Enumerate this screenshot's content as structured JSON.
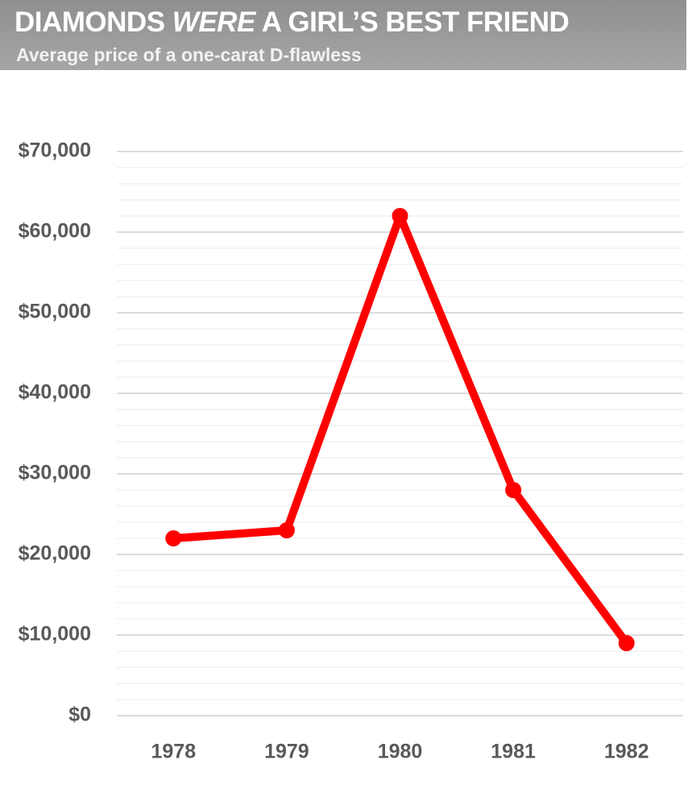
{
  "chart_data": {
    "type": "line",
    "title": [
      "DIAMONDS",
      "WERE",
      "A GIRL’S BEST FRIEND"
    ],
    "subtitle": "Average price of a one-carat D-flawless",
    "categories": [
      "1978",
      "1979",
      "1980",
      "1981",
      "1982"
    ],
    "series": [
      {
        "name": "Average price",
        "color": "#ff0000",
        "values": [
          22000,
          23000,
          62000,
          28000,
          9000
        ]
      }
    ],
    "ylim": [
      0,
      70000
    ],
    "yticks": [
      {
        "value": 0,
        "label": "$0"
      },
      {
        "value": 10000,
        "label": "$10,000"
      },
      {
        "value": 20000,
        "label": "$20,000"
      },
      {
        "value": 30000,
        "label": "$30,000"
      },
      {
        "value": 40000,
        "label": "$40,000"
      },
      {
        "value": 50000,
        "label": "$50,000"
      },
      {
        "value": 60000,
        "label": "$60,000"
      },
      {
        "value": 70000,
        "label": "$70,000"
      }
    ],
    "minor_yticks": [
      2000,
      4000,
      6000,
      8000,
      12000,
      14000,
      16000,
      18000,
      22000,
      24000,
      26000,
      28000,
      32000,
      34000,
      36000,
      38000,
      42000,
      44000,
      46000,
      48000,
      52000,
      54000,
      56000,
      58000,
      62000,
      64000,
      66000,
      68000
    ],
    "grid": true
  }
}
